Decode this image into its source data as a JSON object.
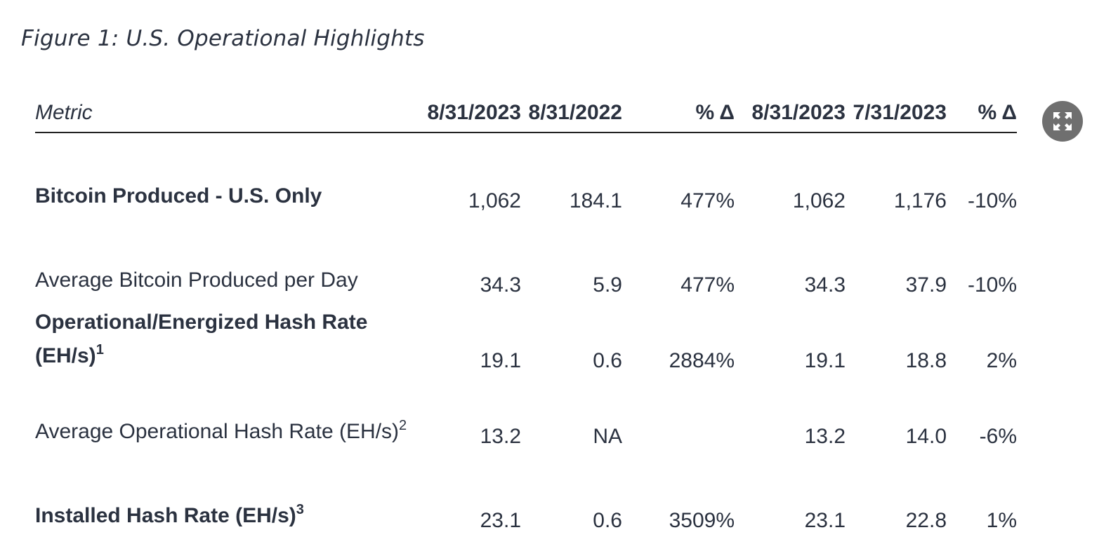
{
  "figure": {
    "title": "Figure 1: U.S. Operational Highlights"
  },
  "table": {
    "headers": [
      "Metric",
      "8/31/2023",
      "8/31/2022",
      "% Δ",
      "8/31/2023",
      "7/31/2023",
      "% Δ"
    ],
    "rows": [
      {
        "label": "Bitcoin Produced - U.S. Only",
        "sup": "",
        "bold": true,
        "values": [
          "1,062",
          "184.1",
          "477%",
          "1,062",
          "1,176",
          "-10%"
        ]
      },
      {
        "label": "Average Bitcoin Produced per Day",
        "sup": "",
        "bold": false,
        "values": [
          "34.3",
          "5.9",
          "477%",
          "34.3",
          "37.9",
          "-10%"
        ]
      },
      {
        "label": "Operational/Energized Hash Rate (EH/s)",
        "sup": "1",
        "bold": true,
        "values": [
          "19.1",
          "0.6",
          "2884%",
          "19.1",
          "18.8",
          "2%"
        ]
      },
      {
        "label": "Average Operational Hash Rate (EH/s)",
        "sup": "2",
        "bold": false,
        "values": [
          "13.2",
          "NA",
          "",
          "13.2",
          "14.0",
          "-6%"
        ]
      },
      {
        "label": "Installed Hash Rate (EH/s)",
        "sup": "3",
        "bold": true,
        "values": [
          "23.1",
          "0.6",
          "3509%",
          "23.1",
          "22.8",
          "1%"
        ]
      }
    ]
  },
  "controls": {
    "expand_icon": "expand-icon"
  }
}
